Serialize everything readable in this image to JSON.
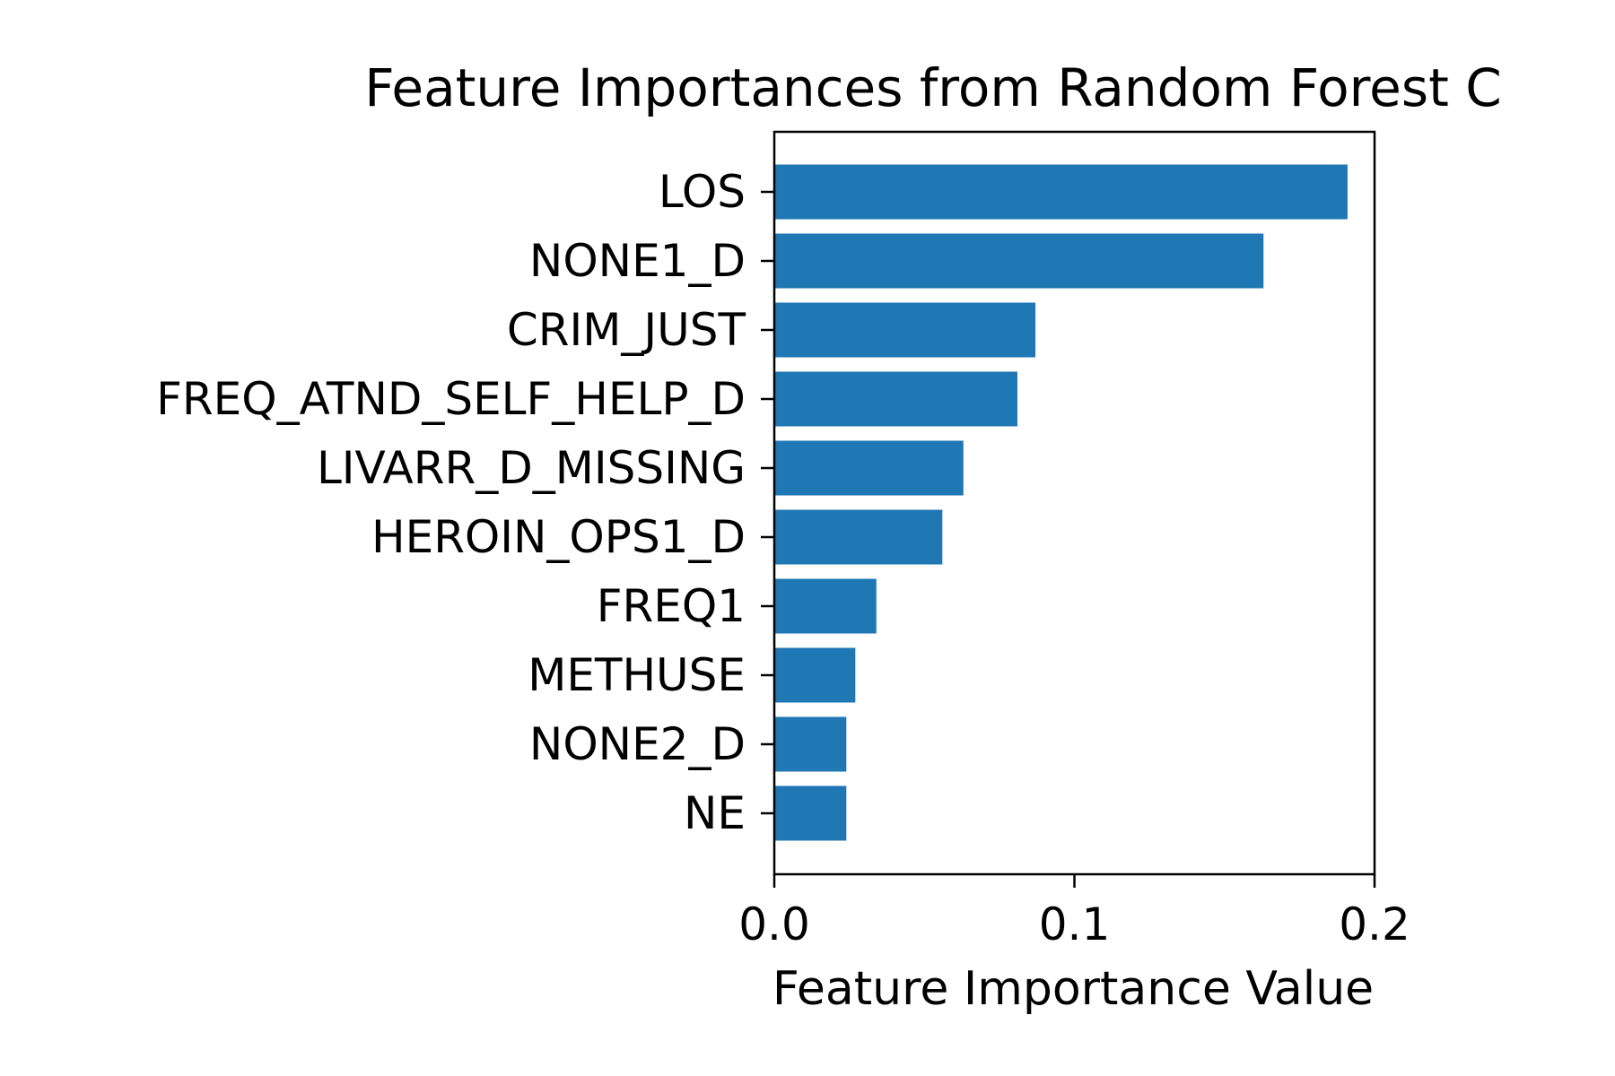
{
  "chart_data": {
    "type": "bar",
    "orientation": "horizontal",
    "title": "Feature Importances from Random Forest C",
    "xlabel": "Feature Importance Value",
    "ylabel": "",
    "categories": [
      "LOS",
      "NONE1_D",
      "CRIM_JUST",
      "FREQ_ATND_SELF_HELP_D",
      "LIVARR_D_MISSING",
      "HEROIN_OPS1_D",
      "FREQ1",
      "METHUSE",
      "NONE2_D",
      "NE"
    ],
    "values": [
      0.191,
      0.163,
      0.087,
      0.081,
      0.063,
      0.056,
      0.034,
      0.027,
      0.024,
      0.024
    ],
    "xlim": [
      0,
      0.2
    ],
    "xticks": [
      0,
      0.1,
      0.2
    ],
    "xtick_labels": [
      "0.0",
      "0.1",
      "0.2"
    ],
    "grid": false,
    "bar_color": "#1f77b4"
  }
}
